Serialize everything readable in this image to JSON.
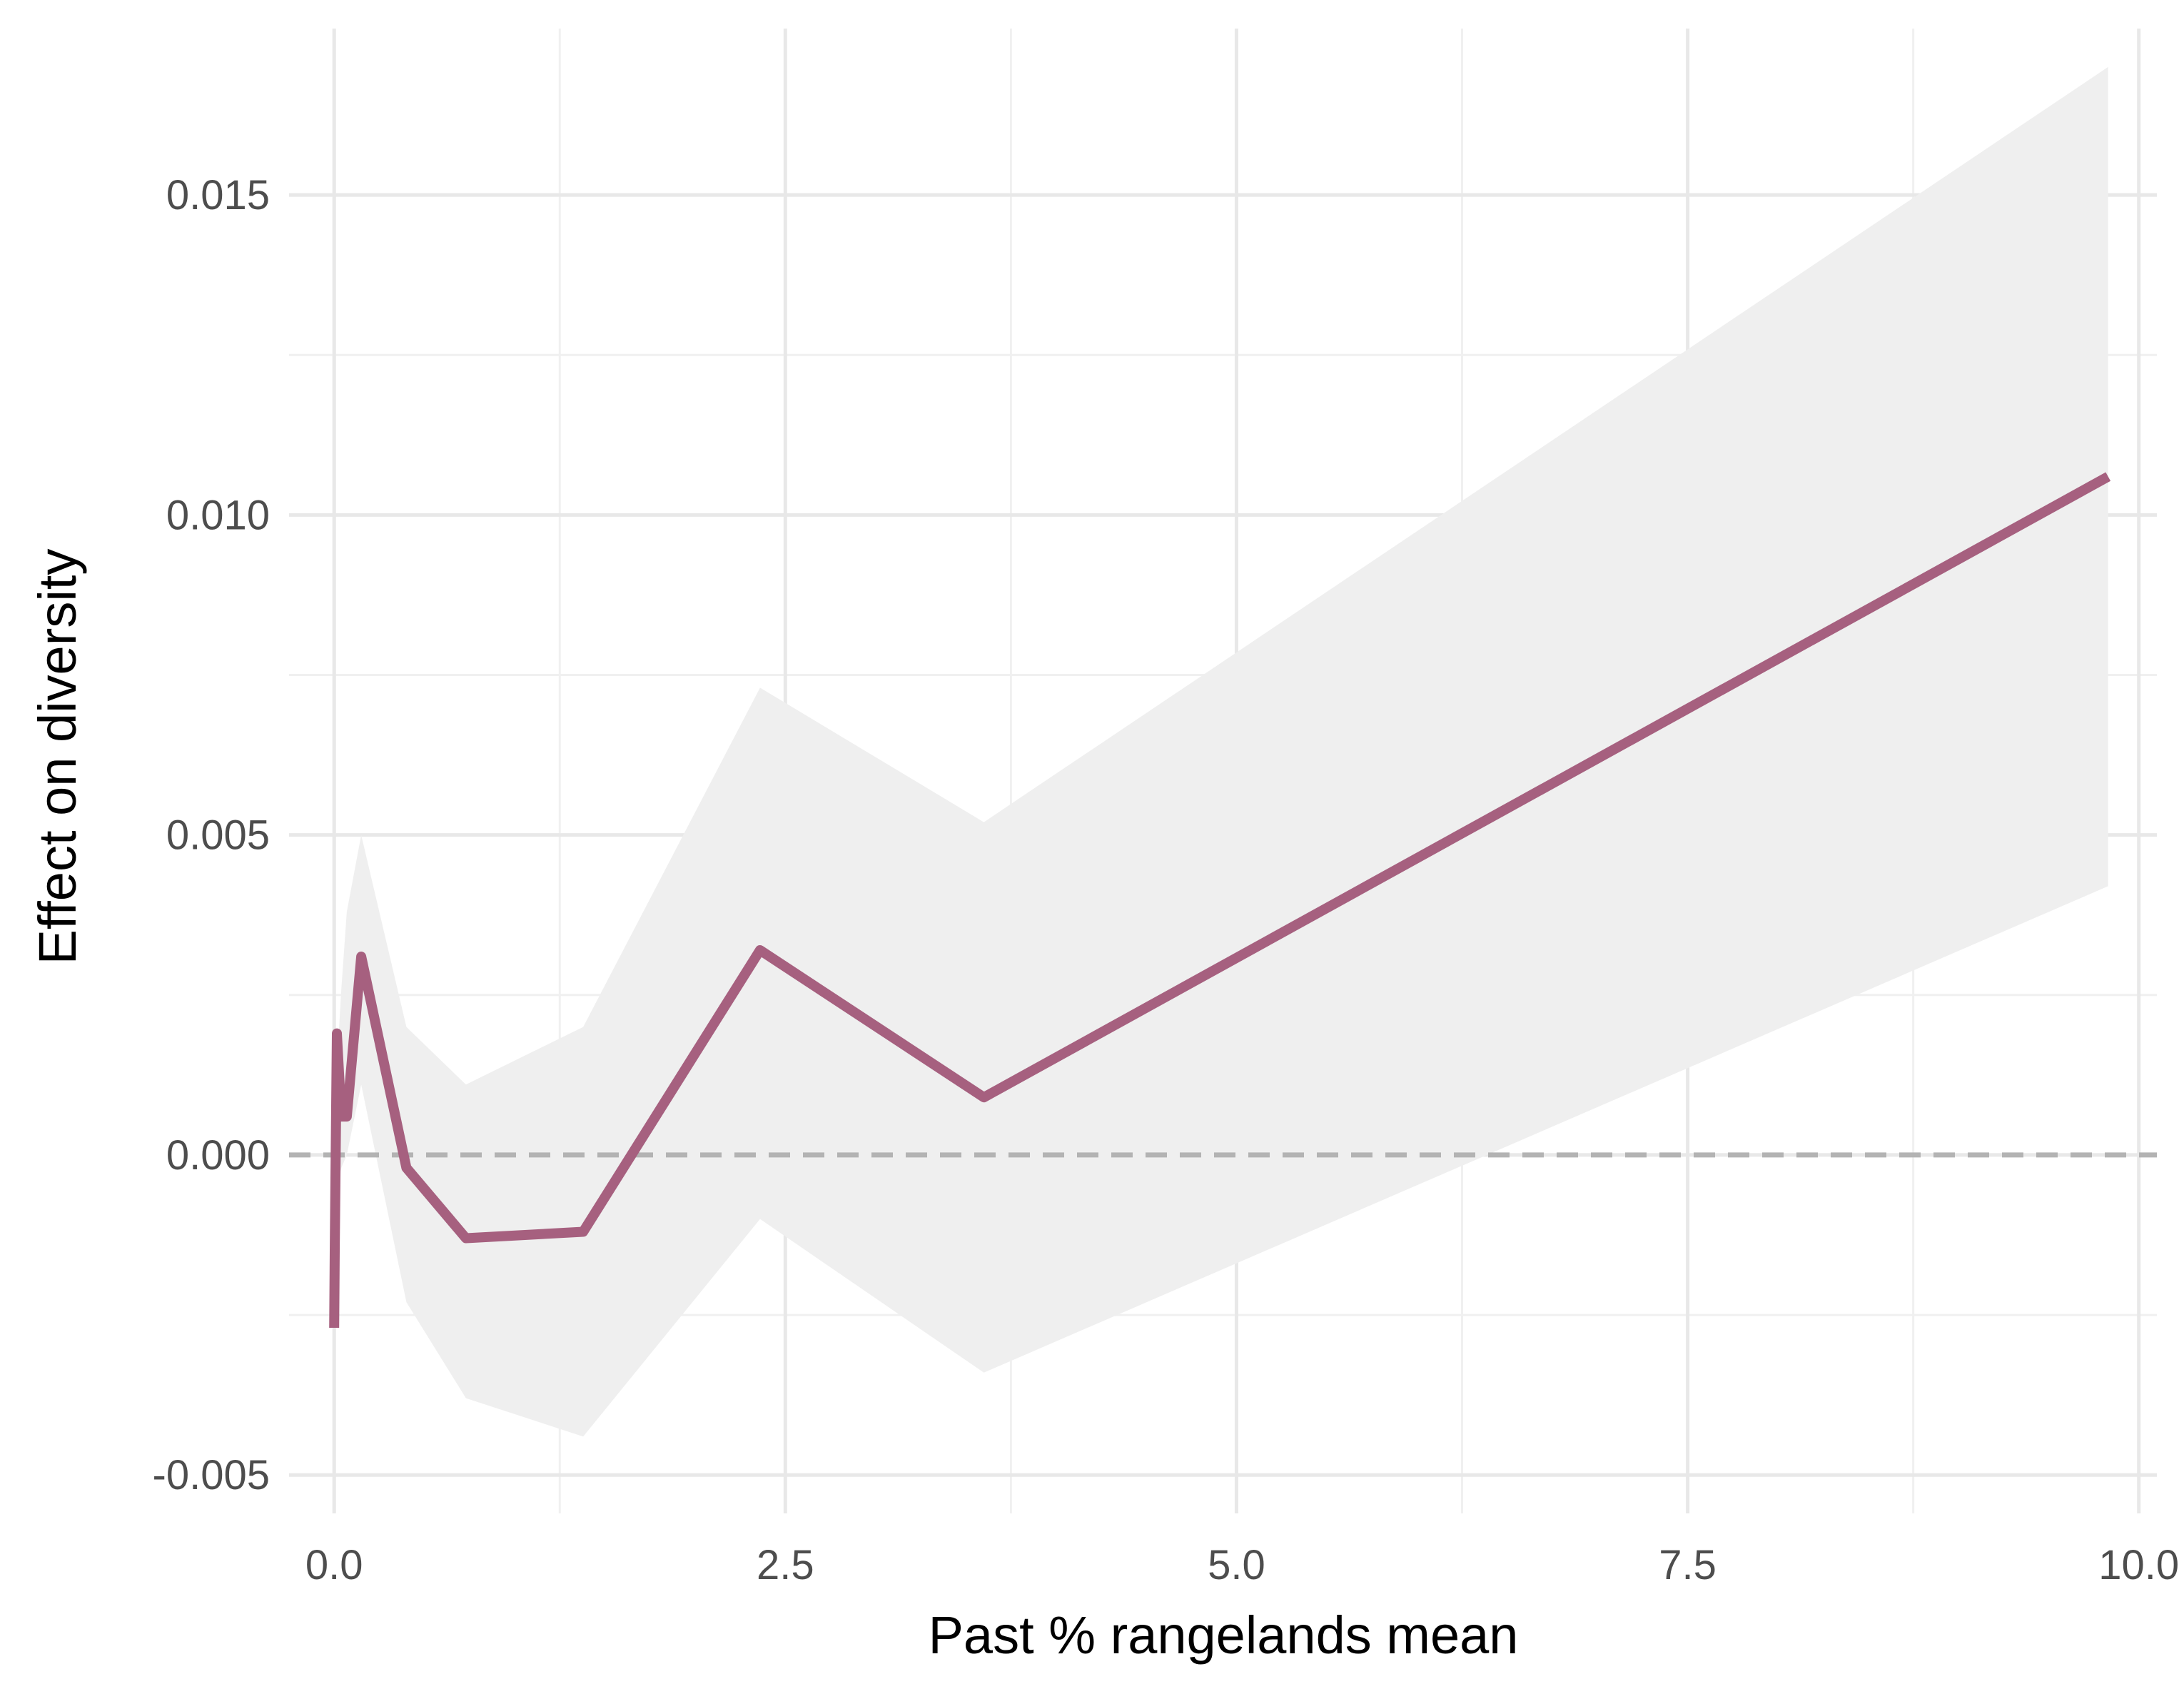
{
  "chart_data": {
    "type": "line",
    "xlabel": "Past % rangelands mean",
    "ylabel": "Effect on diversity",
    "xlim": [
      -0.25,
      10.1
    ],
    "ylim": [
      -0.0056,
      0.0176
    ],
    "x_ticks": [
      0.0,
      2.5,
      5.0,
      7.5,
      10.0
    ],
    "x_tick_labels": [
      "0.0",
      "2.5",
      "5.0",
      "7.5",
      "10.0"
    ],
    "x_minor_ticks": [
      1.25,
      3.75,
      6.25,
      8.75
    ],
    "y_ticks": [
      -0.005,
      0.0,
      0.005,
      0.01,
      0.015
    ],
    "y_tick_labels": [
      "-0.005",
      "0.000",
      "0.005",
      "0.010",
      "0.015"
    ],
    "y_minor_ticks": [
      -0.0025,
      0.0025,
      0.0075,
      0.0125
    ],
    "grid": true,
    "reference_line": {
      "y": 0.0,
      "style": "dashed",
      "color": "#b3b3b3"
    },
    "series": [
      {
        "color": "#a6607f",
        "x": [
          0.0,
          0.003,
          0.015,
          0.04,
          0.07,
          0.15,
          0.4,
          0.73,
          1.38,
          2.36,
          3.6,
          9.83
        ],
        "y": [
          -0.0027,
          -0.0015,
          0.0019,
          0.0006,
          0.0006,
          0.0031,
          -0.0002,
          -0.0013,
          -0.0012,
          0.0032,
          0.0009,
          0.0106
        ],
        "lower": [
          -0.0027,
          -0.0025,
          -0.0005,
          -0.0002,
          0.0,
          0.0011,
          -0.0023,
          -0.0038,
          -0.0044,
          -0.001,
          -0.0034,
          0.0042
        ],
        "upper": [
          -0.0027,
          -0.0002,
          0.0014,
          0.0026,
          0.0038,
          0.005,
          0.002,
          0.0011,
          0.002,
          0.0073,
          0.0052,
          0.017
        ]
      }
    ],
    "band_color": "#efefef"
  }
}
